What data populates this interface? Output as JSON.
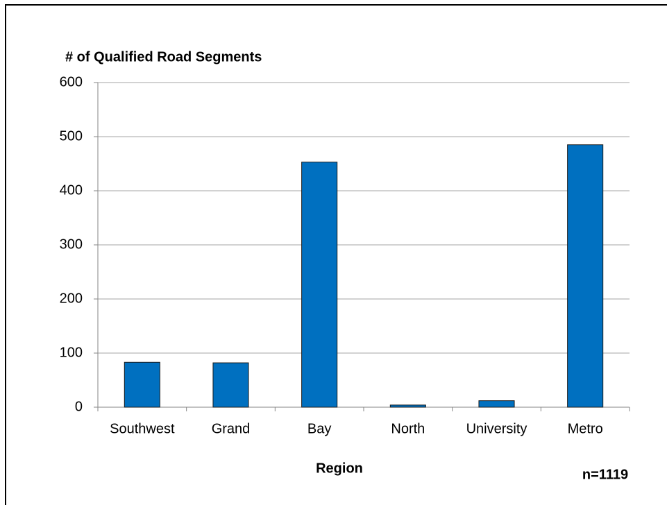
{
  "chart_data": {
    "type": "bar",
    "y_label": "# of Qualified Road Segments",
    "x_label": "Region",
    "annotation": "n=1119",
    "categories": [
      "Southwest",
      "Grand",
      "Bay",
      "North",
      "University",
      "Metro"
    ],
    "values": [
      83,
      82,
      453,
      4,
      12,
      485
    ],
    "color": "#0070c0",
    "ylim": [
      0,
      600
    ],
    "yticks": [
      0,
      100,
      200,
      300,
      400,
      500,
      600
    ],
    "grid": true
  }
}
